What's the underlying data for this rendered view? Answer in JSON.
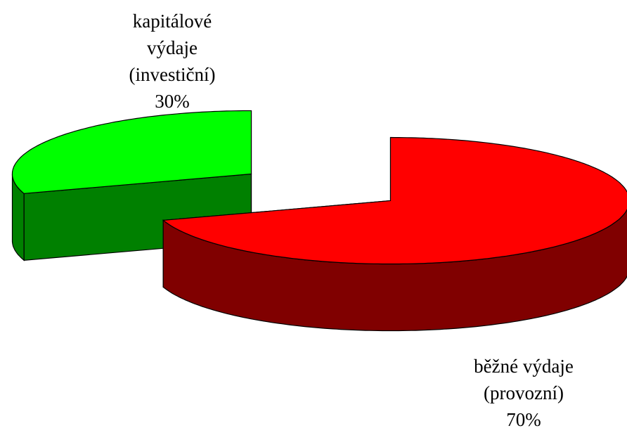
{
  "chart_data": {
    "type": "pie3d",
    "categories": [
      "běžné výdaje (provozní)",
      "kapitálové výdaje (investiční)"
    ],
    "values": [
      70,
      30
    ],
    "value_labels": [
      "70%",
      "30%"
    ],
    "colors": [
      "#ff0000",
      "#00ff00"
    ]
  }
}
